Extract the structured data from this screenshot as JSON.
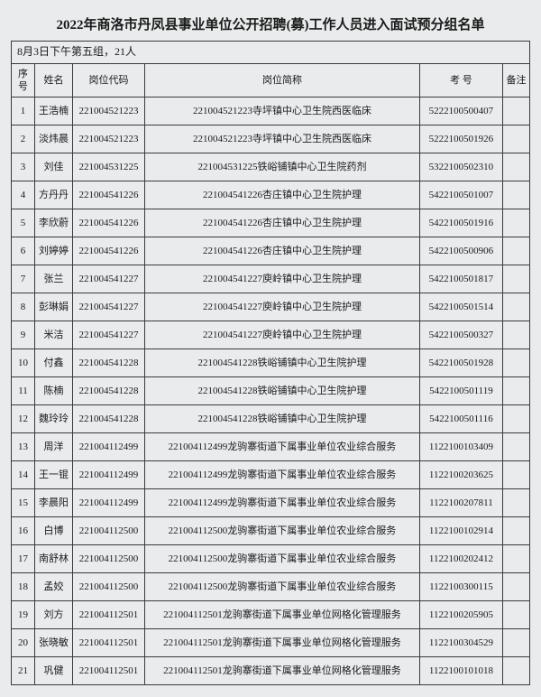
{
  "title": "2022年商洛市丹凤县事业单位公开招聘(募)工作人员进入面试预分组名单",
  "subtitle": "8月3日下午第五组，21人",
  "headers": {
    "seq": "序号",
    "name": "姓名",
    "code": "岗位代码",
    "desc": "岗位简称",
    "exam": "考 号",
    "note": "备注"
  },
  "rows": [
    {
      "seq": "1",
      "name": "王浩楠",
      "code": "221004521223",
      "desc": "221004521223寺坪镇中心卫生院西医临床",
      "exam": "5222100500407",
      "note": ""
    },
    {
      "seq": "2",
      "name": "淡炜晨",
      "code": "221004521223",
      "desc": "221004521223寺坪镇中心卫生院西医临床",
      "exam": "5222100501926",
      "note": ""
    },
    {
      "seq": "3",
      "name": "刘佳",
      "code": "221004531225",
      "desc": "221004531225铁峪铺镇中心卫生院药剂",
      "exam": "5322100502310",
      "note": ""
    },
    {
      "seq": "4",
      "name": "方丹丹",
      "code": "221004541226",
      "desc": "221004541226杏庄镇中心卫生院护理",
      "exam": "5422100501007",
      "note": ""
    },
    {
      "seq": "5",
      "name": "李欣蔚",
      "code": "221004541226",
      "desc": "221004541226杏庄镇中心卫生院护理",
      "exam": "5422100501916",
      "note": ""
    },
    {
      "seq": "6",
      "name": "刘婷婷",
      "code": "221004541226",
      "desc": "221004541226杏庄镇中心卫生院护理",
      "exam": "5422100500906",
      "note": ""
    },
    {
      "seq": "7",
      "name": "张兰",
      "code": "221004541227",
      "desc": "221004541227庾岭镇中心卫生院护理",
      "exam": "5422100501817",
      "note": ""
    },
    {
      "seq": "8",
      "name": "彭琳娟",
      "code": "221004541227",
      "desc": "221004541227庾岭镇中心卫生院护理",
      "exam": "5422100501514",
      "note": ""
    },
    {
      "seq": "9",
      "name": "米洁",
      "code": "221004541227",
      "desc": "221004541227庾岭镇中心卫生院护理",
      "exam": "5422100500327",
      "note": ""
    },
    {
      "seq": "10",
      "name": "付鑫",
      "code": "221004541228",
      "desc": "221004541228铁峪铺镇中心卫生院护理",
      "exam": "5422100501928",
      "note": ""
    },
    {
      "seq": "11",
      "name": "陈楠",
      "code": "221004541228",
      "desc": "221004541228铁峪铺镇中心卫生院护理",
      "exam": "5422100501119",
      "note": ""
    },
    {
      "seq": "12",
      "name": "魏玲玲",
      "code": "221004541228",
      "desc": "221004541228铁峪铺镇中心卫生院护理",
      "exam": "5422100501116",
      "note": ""
    },
    {
      "seq": "13",
      "name": "周洋",
      "code": "221004112499",
      "desc": "221004112499龙驹寨街道下属事业单位农业综合服务",
      "exam": "1122100103409",
      "note": ""
    },
    {
      "seq": "14",
      "name": "王一锟",
      "code": "221004112499",
      "desc": "221004112499龙驹寨街道下属事业单位农业综合服务",
      "exam": "1122100203625",
      "note": ""
    },
    {
      "seq": "15",
      "name": "李晨阳",
      "code": "221004112499",
      "desc": "221004112499龙驹寨街道下属事业单位农业综合服务",
      "exam": "1122100207811",
      "note": ""
    },
    {
      "seq": "16",
      "name": "白博",
      "code": "221004112500",
      "desc": "221004112500龙驹寨街道下属事业单位农业综合服务",
      "exam": "1122100102914",
      "note": ""
    },
    {
      "seq": "17",
      "name": "南舒林",
      "code": "221004112500",
      "desc": "221004112500龙驹寨街道下属事业单位农业综合服务",
      "exam": "1122100202412",
      "note": ""
    },
    {
      "seq": "18",
      "name": "孟姣",
      "code": "221004112500",
      "desc": "221004112500龙驹寨街道下属事业单位农业综合服务",
      "exam": "1122100300115",
      "note": ""
    },
    {
      "seq": "19",
      "name": "刘方",
      "code": "221004112501",
      "desc": "221004112501龙驹寨街道下属事业单位网格化管理服务",
      "exam": "1122100205905",
      "note": ""
    },
    {
      "seq": "20",
      "name": "张晓敏",
      "code": "221004112501",
      "desc": "221004112501龙驹寨街道下属事业单位网格化管理服务",
      "exam": "1122100304529",
      "note": ""
    },
    {
      "seq": "21",
      "name": "巩健",
      "code": "221004112501",
      "desc": "221004112501龙驹寨街道下属事业单位网格化管理服务",
      "exam": "1122100101018",
      "note": ""
    }
  ]
}
